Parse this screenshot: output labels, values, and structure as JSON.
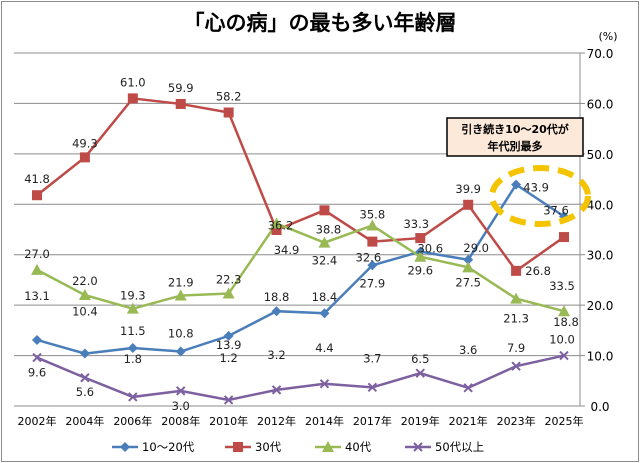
{
  "chart_data": {
    "type": "line",
    "title": "「心の病」の最も多い年齢層",
    "ylabel": "(%)",
    "ylim": [
      0,
      70
    ],
    "yticks": [
      "0.0",
      "10.0",
      "20.0",
      "30.0",
      "40.0",
      "50.0",
      "60.0",
      "70.0"
    ],
    "grid": true,
    "legend_position": "bottom",
    "categories": [
      "2002年",
      "2004年",
      "2006年",
      "2008年",
      "2010年",
      "2012年",
      "2014年",
      "2017年",
      "2019年",
      "2021年",
      "2023年",
      "2025年"
    ],
    "series": [
      {
        "name": "10～20代",
        "color": "#4a7ebb",
        "marker": "diamond",
        "values": [
          13.1,
          10.4,
          11.5,
          10.8,
          13.9,
          18.8,
          18.4,
          27.9,
          30.6,
          29.0,
          43.9,
          37.6
        ],
        "labels": [
          "13.1",
          "10.4",
          "11.5",
          "10.8",
          "13.9",
          "18.8",
          "18.4",
          "27.9",
          "30.6",
          "29.0",
          "43.9",
          "37.6"
        ]
      },
      {
        "name": "30代",
        "color": "#be4b48",
        "marker": "square",
        "values": [
          41.8,
          49.3,
          61.0,
          59.9,
          58.2,
          34.9,
          38.8,
          32.6,
          33.3,
          39.9,
          26.8,
          33.5
        ],
        "labels": [
          "41.8",
          "49.3",
          "61.0",
          "59.9",
          "58.2",
          "34.9",
          "38.8",
          "32.6",
          "33.3",
          "39.9",
          "26.8",
          "33.5"
        ]
      },
      {
        "name": "40代",
        "color": "#98b954",
        "marker": "triangle",
        "values": [
          27.0,
          22.0,
          19.3,
          21.9,
          22.3,
          36.2,
          32.4,
          35.8,
          29.6,
          27.5,
          21.3,
          18.8
        ],
        "labels": [
          "27.0",
          "22.0",
          "19.3",
          "21.9",
          "22.3",
          "36.2",
          "32.4",
          "35.8",
          "29.6",
          "27.5",
          "21.3",
          "18.8"
        ]
      },
      {
        "name": "50代以上",
        "color": "#7d60a0",
        "marker": "x",
        "values": [
          9.6,
          5.6,
          1.8,
          3.0,
          1.2,
          3.2,
          4.4,
          3.7,
          6.5,
          3.6,
          7.9,
          10.0
        ],
        "labels": [
          "9.6",
          "5.6",
          "1.8",
          "3.0",
          "1.2",
          "3.2",
          "4.4",
          "3.7",
          "6.5",
          "3.6",
          "7.9",
          "10.0"
        ]
      }
    ],
    "annotation": {
      "line1": "引き続き10～20代が",
      "line2": "年代別最多",
      "highlight_color": "#f5c400",
      "box_color": "#fde9d9"
    }
  }
}
